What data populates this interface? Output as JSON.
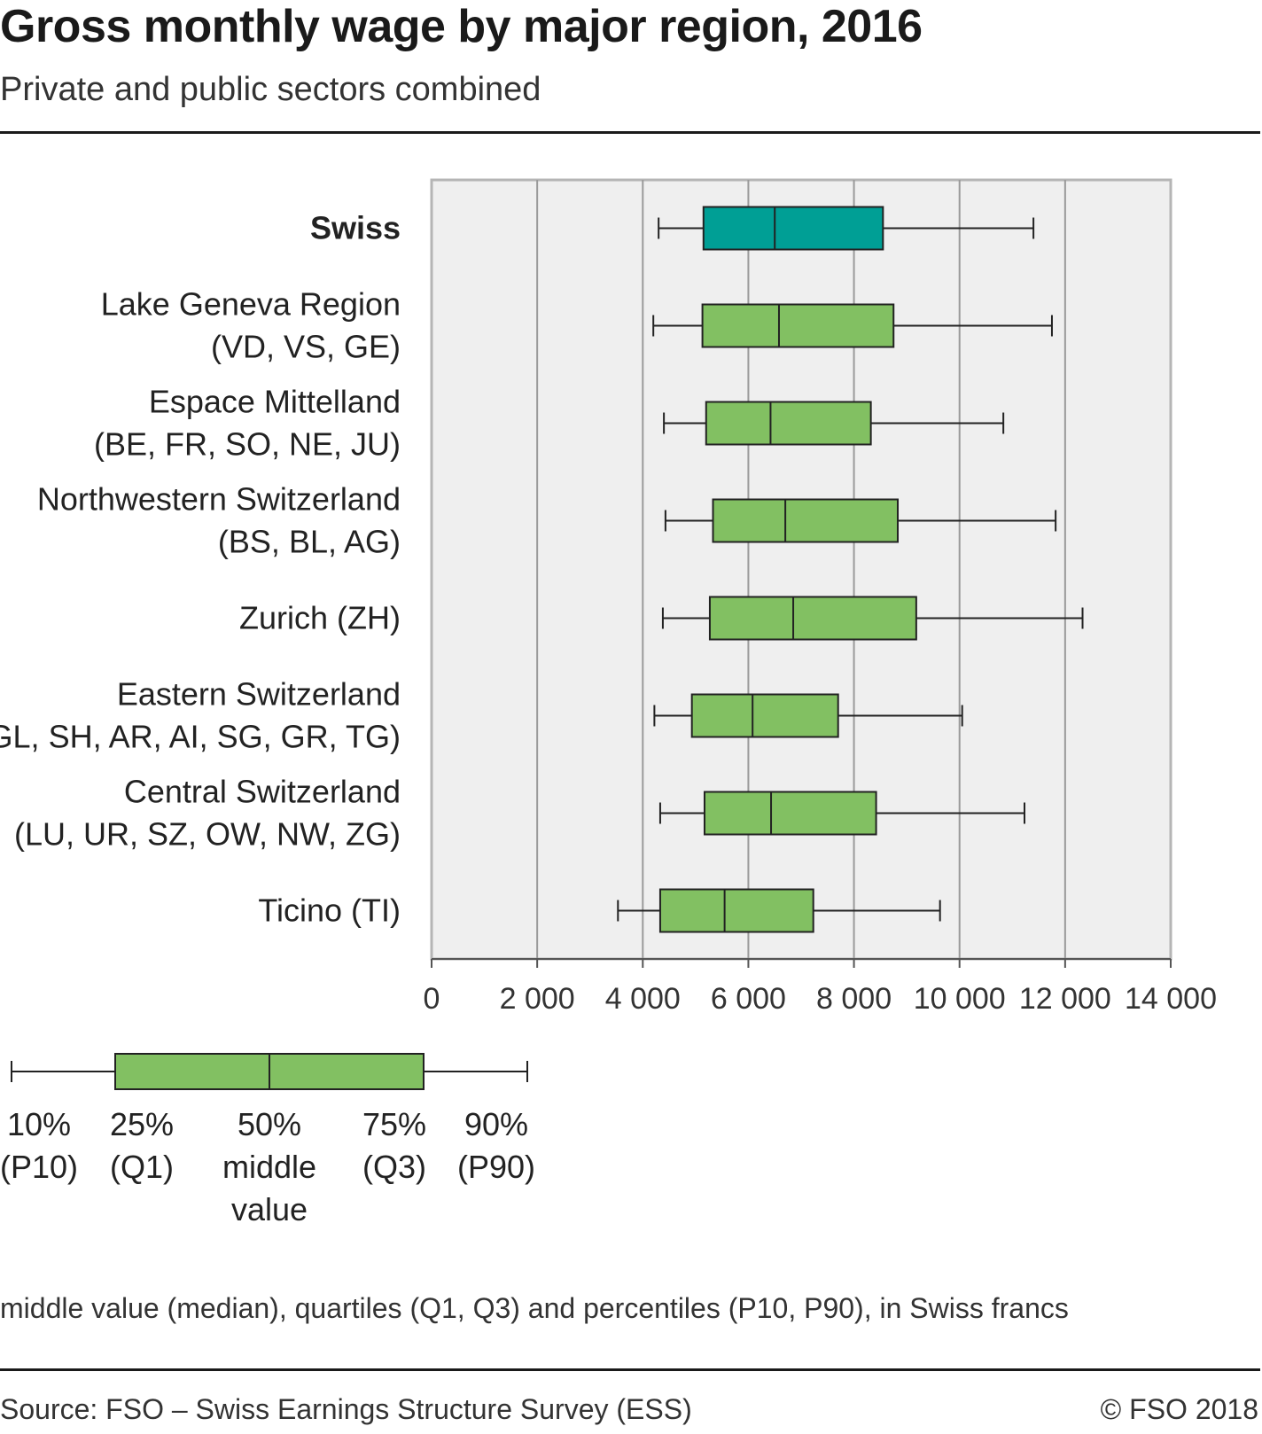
{
  "title": "Gross monthly wage by major region, 2016",
  "subtitle": "Private and public sectors combined",
  "note": "middle value (median), quartiles (Q1, Q3) and percentiles (P10, P90), in Swiss francs",
  "source": "Source: FSO – Swiss Earnings Structure Survey (ESS)",
  "copyright": "© FSO 2018",
  "colors": {
    "swiss_box": "#009f95",
    "region_box": "#82c062",
    "plot_bg": "#efefef",
    "grid": "#9a9a9a",
    "frame": "#b5b5b5",
    "axis": "#555555",
    "line": "#222222"
  },
  "chart_data": {
    "type": "boxplot",
    "orientation": "horizontal",
    "xlim": [
      0,
      14000
    ],
    "x_ticks": [
      0,
      2000,
      4000,
      6000,
      8000,
      10000,
      12000,
      14000
    ],
    "x_tick_labels": [
      "0",
      "2 000",
      "4 000",
      "6 000",
      "8 000",
      "10 000",
      "12 000",
      "14 000"
    ],
    "grid": true,
    "unit": "Swiss francs",
    "series": [
      {
        "label": [
          "Swiss"
        ],
        "bold": true,
        "color_key": "swiss_box",
        "p10": 4300,
        "q1": 5150,
        "median": 6500,
        "q3": 8550,
        "p90": 11400
      },
      {
        "label": [
          "Lake Geneva Region",
          "(VD, VS, GE)"
        ],
        "bold": false,
        "color_key": "region_box",
        "p10": 4200,
        "q1": 5130,
        "median": 6580,
        "q3": 8750,
        "p90": 11750
      },
      {
        "label": [
          "Espace Mittelland",
          "(BE, FR, SO, NE, JU)"
        ],
        "bold": false,
        "color_key": "region_box",
        "p10": 4400,
        "q1": 5200,
        "median": 6420,
        "q3": 8320,
        "p90": 10830
      },
      {
        "label": [
          "Northwestern Switzerland",
          "(BS, BL, AG)"
        ],
        "bold": false,
        "color_key": "region_box",
        "p10": 4430,
        "q1": 5330,
        "median": 6700,
        "q3": 8830,
        "p90": 11820
      },
      {
        "label": [
          "Zurich (ZH)"
        ],
        "bold": false,
        "color_key": "region_box",
        "p10": 4380,
        "q1": 5270,
        "median": 6850,
        "q3": 9180,
        "p90": 12330
      },
      {
        "label": [
          "Eastern Switzerland",
          "(GL, SH, AR, AI, SG, GR, TG)"
        ],
        "bold": false,
        "color_key": "region_box",
        "p10": 4220,
        "q1": 4930,
        "median": 6080,
        "q3": 7700,
        "p90": 10050
      },
      {
        "label": [
          "Central Switzerland",
          "(LU, UR, SZ, OW, NW, ZG)"
        ],
        "bold": false,
        "color_key": "region_box",
        "p10": 4330,
        "q1": 5170,
        "median": 6430,
        "q3": 8420,
        "p90": 11230
      },
      {
        "label": [
          "Ticino (TI)"
        ],
        "bold": false,
        "color_key": "region_box",
        "p10": 3530,
        "q1": 4330,
        "median": 5550,
        "q3": 7230,
        "p90": 9630
      }
    ],
    "legend": {
      "example_box_color_key": "region_box",
      "labels": [
        [
          "10%",
          "(P10)"
        ],
        [
          "25%",
          "(Q1)"
        ],
        [
          "50%",
          "middle",
          "value"
        ],
        [
          "75%",
          "(Q3)"
        ],
        [
          "90%",
          "(P90)"
        ]
      ]
    }
  }
}
